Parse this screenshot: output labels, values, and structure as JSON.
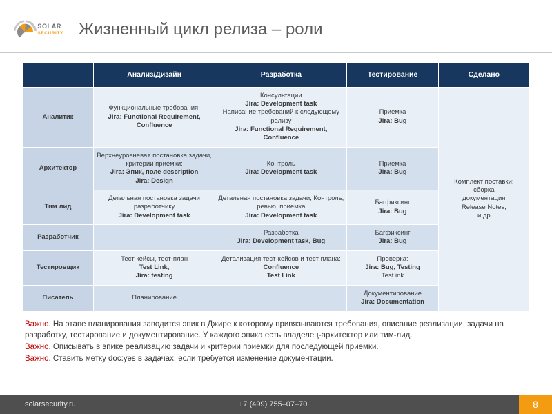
{
  "page": {
    "title": "Жизненный цикл релиза – роли",
    "slide_number": "8"
  },
  "logo": {
    "brand_top": "SOLAR",
    "brand_bottom": "SECURITY",
    "orange": "#f39c12",
    "grey": "#8a8a8a"
  },
  "table": {
    "header_bg": "#17375e",
    "label_bg": "#c6d4e6",
    "band_light": "#e9eff7",
    "band_dark": "#d4dfee",
    "columns": [
      "",
      "Анализ/Дизайн",
      "Разработка",
      "Тестирование",
      "Сделано"
    ],
    "col_widths": [
      "14%",
      "24%",
      "26%",
      "18%",
      "18%"
    ],
    "rows": [
      {
        "label": "Аналитик",
        "analysis": "Функциональные требования:\nJira: Functional Requirement, Confluence",
        "dev": "Консультации\nJira: Development task\nНаписание требований к следующему релизу\nJira: Functional Requirement, Confluence",
        "test": "Приемка\nJira: Bug"
      },
      {
        "label": "Архитектор",
        "analysis": "Верхнеуровневая постановка задачи, критерии приемки:\nJira: Эпик, поле description\nJira: Design",
        "dev": "Контроль\nJira: Development task",
        "test": "Приемка\nJira: Bug"
      },
      {
        "label": "Тим лид",
        "analysis": "Детальная постановка задачи разработчику\nJira: Development task",
        "dev": "Детальная постановка задачи, Контроль, ревью, приемка\nJira: Development task",
        "test": "Багфиксинг\nJira: Bug"
      },
      {
        "label": "Разработчик",
        "analysis": "",
        "dev": "Разработка\nJira: Development task, Bug",
        "test": "Багфиксинг\nJira: Bug"
      },
      {
        "label": "Тестировщик",
        "analysis": "Тест кейсы, тест-план\nTest Link,\nJira: testing",
        "dev": "Детализация тест-кейсов и тест плана:\nConfluence\nTest Link",
        "test": "Проверка:\nJira: Bug, Testing\nTest ink"
      },
      {
        "label": "Писатель",
        "analysis": "Планирование",
        "dev": "",
        "test": "Документирование\nJira: Documentation"
      }
    ],
    "done": "Комплект поставки:\nсборка\nдокументация\nRelease Notes,\nи др"
  },
  "notes": {
    "important_label": "Важно.",
    "n1": "На этапе планирования заводится эпик в Джире к которому привязываются требования, описание реализации, задачи на разработку, тестирование и документирование. У каждого эпика есть владелец-архитектор или тим-лид.",
    "n2": "Описывать в эпике реализацию задачи и критерии приемки для последующей приемки.",
    "n3": "Ставить метку doc:yes в задачах, если требуется изменение документации."
  },
  "footer": {
    "site": "solarsecurity.ru",
    "phone": "+7 (499) 755–07–70",
    "page_bg": "#f39c12"
  }
}
